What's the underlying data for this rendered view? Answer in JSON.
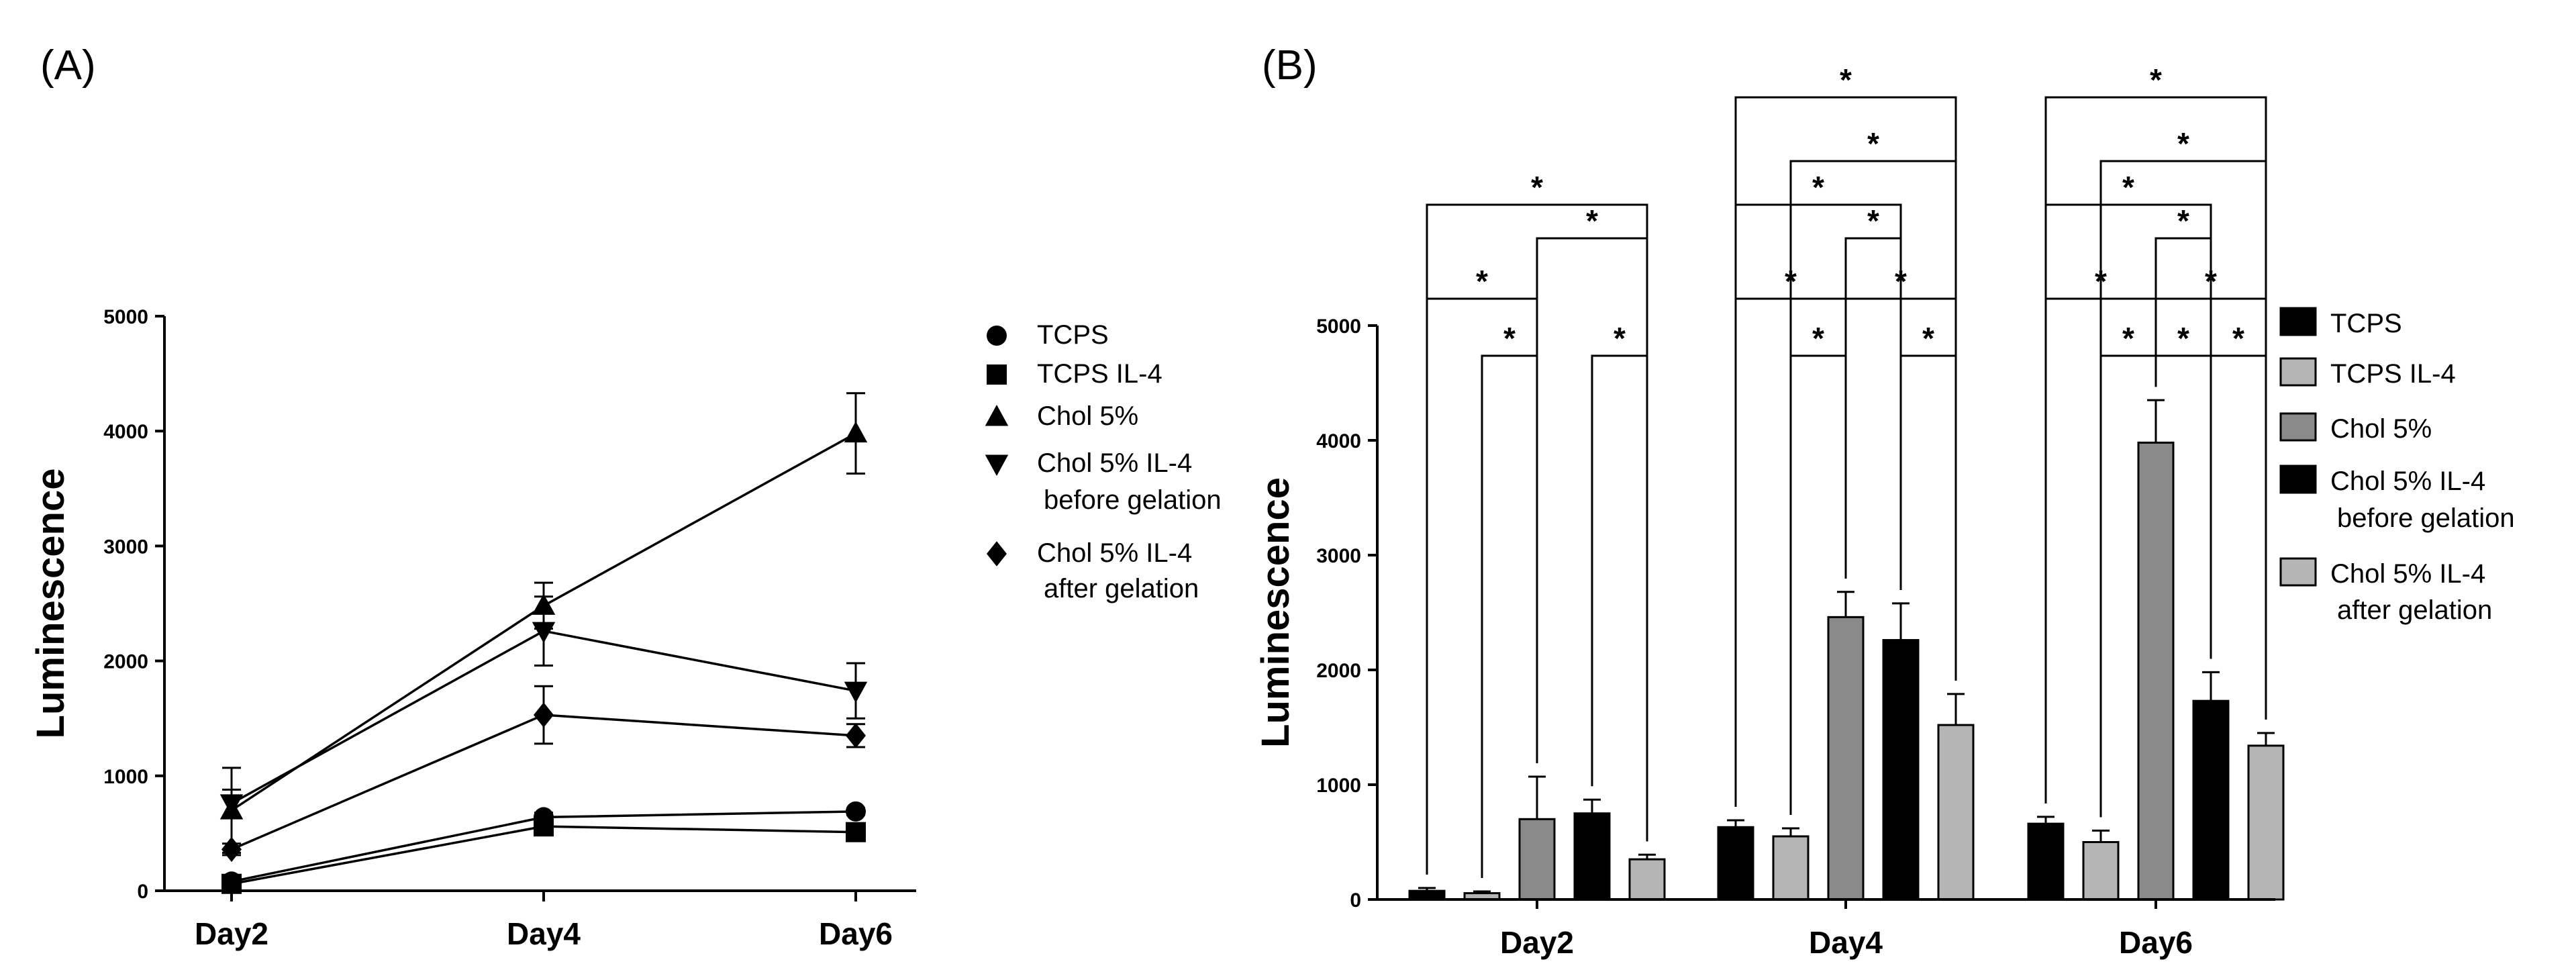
{
  "panels": {
    "a_label": "(A)",
    "b_label": "(B)"
  },
  "chart_data": [
    {
      "type": "line",
      "panel": "A",
      "title": "",
      "xlabel": "",
      "ylabel": "Luminescence",
      "categories": [
        "Day2",
        "Day4",
        "Day6"
      ],
      "ylim": [
        0,
        5000
      ],
      "yticks": [
        "0",
        "1000",
        "2000",
        "3000",
        "4000",
        "5000"
      ],
      "legend_position": "right",
      "series": [
        {
          "name": "TCPS",
          "legend_lines": [
            "TCPS"
          ],
          "marker": "circle",
          "values": [
            80,
            640,
            690
          ],
          "errors": [
            20,
            40,
            30
          ]
        },
        {
          "name": "TCPS IL-4",
          "legend_lines": [
            "TCPS IL-4"
          ],
          "marker": "square",
          "values": [
            60,
            560,
            510
          ],
          "errors": [
            15,
            50,
            60
          ]
        },
        {
          "name": "Chol 5%",
          "legend_lines": [
            "Chol 5%"
          ],
          "marker": "triangle-up",
          "values": [
            700,
            2480,
            3980
          ],
          "errors": [
            370,
            200,
            350
          ]
        },
        {
          "name": "Chol 5% IL-4 before gelation",
          "legend_lines": [
            "Chol 5% IL-4",
            "before gelation"
          ],
          "marker": "triangle-down",
          "values": [
            760,
            2260,
            1740
          ],
          "errors": [
            120,
            300,
            240
          ]
        },
        {
          "name": "Chol 5% IL-4 after gelation",
          "legend_lines": [
            "Chol 5% IL-4",
            "after gelation"
          ],
          "marker": "diamond",
          "values": [
            360,
            1530,
            1350
          ],
          "errors": [
            50,
            250,
            100
          ]
        }
      ]
    },
    {
      "type": "bar",
      "panel": "B",
      "title": "",
      "xlabel": "",
      "ylabel": "Luminescence",
      "categories": [
        "Day2",
        "Day4",
        "Day6"
      ],
      "ylim": [
        0,
        5000
      ],
      "yticks": [
        "0",
        "1000",
        "2000",
        "3000",
        "4000",
        "5000"
      ],
      "legend_position": "right",
      "series": [
        {
          "name": "TCPS",
          "legend_lines": [
            "TCPS"
          ],
          "color": "#000000",
          "values": [
            75,
            630,
            660
          ],
          "errors": [
            25,
            60,
            60
          ]
        },
        {
          "name": "TCPS IL-4",
          "legend_lines": [
            "TCPS IL-4"
          ],
          "color": "#b5b5b5",
          "values": [
            55,
            550,
            500
          ],
          "errors": [
            15,
            70,
            100
          ]
        },
        {
          "name": "Chol 5%",
          "legend_lines": [
            "Chol 5%"
          ],
          "color": "#8a8a8a",
          "values": [
            700,
            2460,
            3980
          ],
          "errors": [
            370,
            220,
            370
          ]
        },
        {
          "name": "Chol 5% IL-4 before gelation",
          "legend_lines": [
            "Chol 5% IL-4",
            "before gelation"
          ],
          "color": "#000000",
          "values": [
            750,
            2260,
            1730
          ],
          "errors": [
            120,
            320,
            250
          ]
        },
        {
          "name": "Chol 5% IL-4 after gelation",
          "legend_lines": [
            "Chol 5% IL-4",
            "after gelation"
          ],
          "color": "#b5b5b5",
          "values": [
            350,
            1520,
            1340
          ],
          "errors": [
            40,
            270,
            110
          ]
        }
      ],
      "significance": {
        "marker": "*",
        "comparisons": [
          {
            "day": 0,
            "from": 2,
            "to": 1
          },
          {
            "day": 0,
            "from": 4,
            "to": 3
          },
          {
            "day": 0,
            "from": 0,
            "to": 2
          },
          {
            "day": 0,
            "from": 2,
            "to": 4
          },
          {
            "day": 0,
            "from": 0,
            "to": 4
          },
          {
            "day": 1,
            "from": 2,
            "to": 1
          },
          {
            "day": 1,
            "from": 4,
            "to": 3
          },
          {
            "day": 1,
            "from": 0,
            "to": 2
          },
          {
            "day": 1,
            "from": 2,
            "to": 4
          },
          {
            "day": 1,
            "from": 2,
            "to": 3
          },
          {
            "day": 1,
            "from": 0,
            "to": 3
          },
          {
            "day": 1,
            "from": 1,
            "to": 4
          },
          {
            "day": 1,
            "from": 0,
            "to": 4
          },
          {
            "day": 2,
            "from": 2,
            "to": 1
          },
          {
            "day": 2,
            "from": 2,
            "to": 3
          },
          {
            "day": 2,
            "from": 4,
            "to": 3
          },
          {
            "day": 2,
            "from": 0,
            "to": 2
          },
          {
            "day": 2,
            "from": 2,
            "to": 4
          },
          {
            "day": 2,
            "from": 2,
            "to": 3
          },
          {
            "day": 2,
            "from": 0,
            "to": 3
          },
          {
            "day": 2,
            "from": 1,
            "to": 4
          },
          {
            "day": 2,
            "from": 0,
            "to": 4
          }
        ]
      }
    }
  ]
}
